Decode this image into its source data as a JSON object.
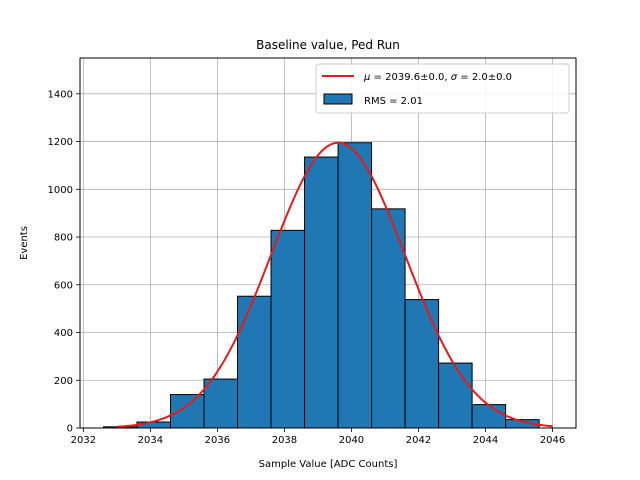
{
  "chart_data": {
    "type": "bar",
    "title": "Baseline value, Ped Run",
    "xlabel": "Sample Value [ADC Counts]",
    "ylabel": "Events",
    "xlim": [
      2031.9,
      2046.7
    ],
    "ylim": [
      0,
      1550
    ],
    "xticks": [
      2032,
      2034,
      2036,
      2038,
      2040,
      2042,
      2044,
      2046
    ],
    "yticks": [
      0,
      200,
      400,
      600,
      800,
      1000,
      1200,
      1400
    ],
    "grid": true,
    "legend_position": "top-right",
    "histogram": {
      "name": "RMS = 2.01",
      "color": "#1f77b4",
      "bin_edges": [
        2032.6,
        2033.6,
        2034.6,
        2035.6,
        2036.6,
        2037.6,
        2038.6,
        2039.6,
        2040.6,
        2041.6,
        2042.6,
        2043.6,
        2044.6,
        2045.6
      ],
      "counts": [
        5,
        25,
        140,
        205,
        552,
        828,
        1135,
        1195,
        918,
        538,
        272,
        98,
        35
      ]
    },
    "fit": {
      "name": "$\\mu = 2039.6\\pm0.0$, $\\sigma = 2.0\\pm0.0$",
      "label_parts": [
        "μ",
        " = 2039.6±0.0, ",
        "σ",
        " = 2.0±0.0"
      ],
      "color": "#e41a1c",
      "mu": 2039.6,
      "sigma": 2.0,
      "amplitude": 1195,
      "x_range": [
        2033,
        2046
      ]
    }
  }
}
